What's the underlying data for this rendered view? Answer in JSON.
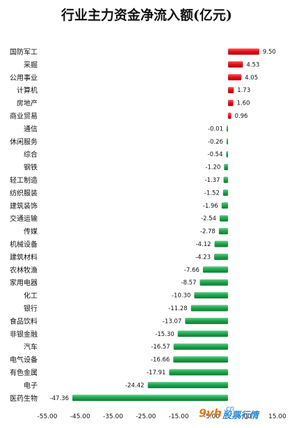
{
  "chart_data": {
    "type": "bar",
    "orientation": "horizontal",
    "title": "行业主力资金净流入额(亿元)",
    "categories": [
      "国防军工",
      "采掘",
      "公用事业",
      "计算机",
      "房地产",
      "商业贸易",
      "通信",
      "休闲服务",
      "综合",
      "钢铁",
      "轻工制造",
      "纺织服装",
      "建筑装饰",
      "交通运输",
      "传媒",
      "机械设备",
      "建筑材料",
      "农林牧渔",
      "家用电器",
      "化工",
      "银行",
      "食品饮料",
      "非银金融",
      "汽车",
      "电气设备",
      "有色金属",
      "电子",
      "医药生物"
    ],
    "values": [
      9.5,
      4.53,
      4.05,
      1.73,
      1.6,
      0.96,
      -0.01,
      -0.26,
      -0.54,
      -1.2,
      -1.37,
      -1.52,
      -1.96,
      -2.54,
      -2.78,
      -4.12,
      -4.23,
      -7.66,
      -8.57,
      -10.3,
      -11.28,
      -13.07,
      -15.3,
      -16.57,
      -16.66,
      -17.91,
      -24.42,
      -47.36
    ],
    "value_labels": [
      "9.50",
      "4.53",
      "4.05",
      "1.73",
      "1.60",
      "0.96",
      "-0.01",
      "-0.26",
      "-0.54",
      "-1.20",
      "-1.37",
      "-1.52",
      "-1.96",
      "-2.54",
      "-2.78",
      "-4.12",
      "-4.23",
      "-7.66",
      "-8.57",
      "-10.30",
      "-11.28",
      "-13.07",
      "-15.30",
      "-16.57",
      "-16.66",
      "-17.91",
      "-24.42",
      "-47.36"
    ],
    "xlim": [
      -55,
      15
    ],
    "xticks": [
      "-55.00",
      "-45.00",
      "-35.00",
      "-25.00",
      "-15.00",
      "-5.00",
      "5.00",
      "15.00"
    ],
    "xtick_values": [
      -55,
      -45,
      -35,
      -25,
      -15,
      -5,
      5,
      15
    ],
    "grid": false,
    "legend": "none",
    "colors": {
      "positive": "#e8101a",
      "negative": "#1c9a46"
    }
  },
  "watermark": {
    "brand": "9vh",
    "domain": ".cn",
    "name": "股票行情"
  }
}
